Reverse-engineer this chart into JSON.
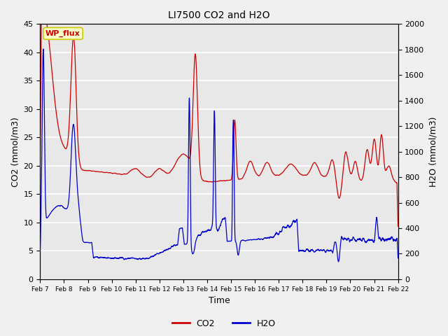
{
  "title": "LI7500 CO2 and H2O",
  "xlabel": "Time",
  "ylabel_left": "CO2 (mmol/m3)",
  "ylabel_right": "H2O (mmol/m3)",
  "xlim": [
    0,
    15
  ],
  "ylim_left": [
    0,
    45
  ],
  "ylim_right": [
    0,
    2000
  ],
  "yticks_left": [
    0,
    5,
    10,
    15,
    20,
    25,
    30,
    35,
    40,
    45
  ],
  "yticks_right": [
    0,
    200,
    400,
    600,
    800,
    1000,
    1200,
    1400,
    1600,
    1800,
    2000
  ],
  "xtick_labels": [
    "Feb 7",
    "Feb 8",
    "Feb 9",
    "Feb 10",
    "Feb 11",
    "Feb 12",
    "Feb 13",
    "Feb 14",
    "Feb 15",
    "Feb 16",
    "Feb 17",
    "Feb 18",
    "Feb 19",
    "Feb 20",
    "Feb 21",
    "Feb 22"
  ],
  "bg_color": "#f0f0f0",
  "plot_bg": "#e8e8e8",
  "grid_color": "white",
  "annotation_text": "WP_flux",
  "annotation_bg": "#ffffcc",
  "annotation_border": "#cccc00",
  "co2_color": "#cc0000",
  "h2o_color": "#0000cc",
  "legend_co2": "CO2",
  "legend_h2o": "H2O",
  "figsize": [
    6.4,
    4.8
  ],
  "dpi": 100
}
